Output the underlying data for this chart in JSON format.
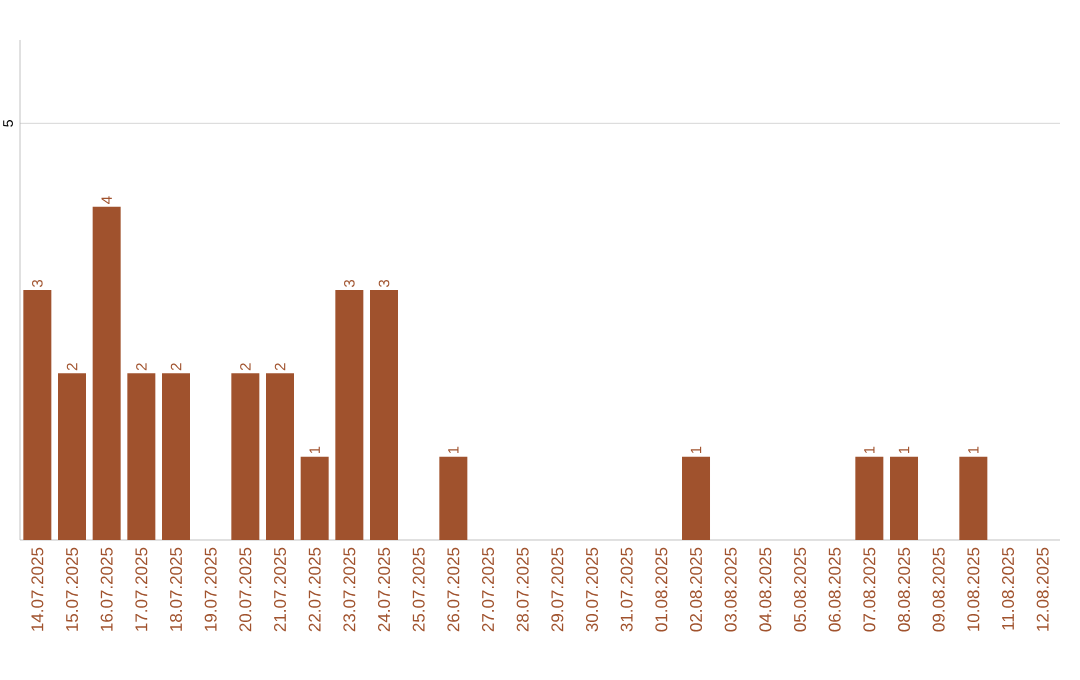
{
  "chart_data": {
    "type": "bar",
    "categories": [
      "14.07.2025",
      "15.07.2025",
      "16.07.2025",
      "17.07.2025",
      "18.07.2025",
      "19.07.2025",
      "20.07.2025",
      "21.07.2025",
      "22.07.2025",
      "23.07.2025",
      "24.07.2025",
      "25.07.2025",
      "26.07.2025",
      "27.07.2025",
      "28.07.2025",
      "29.07.2025",
      "30.07.2025",
      "31.07.2025",
      "01.08.2025",
      "02.08.2025",
      "03.08.2025",
      "04.08.2025",
      "05.08.2025",
      "06.08.2025",
      "07.08.2025",
      "08.08.2025",
      "09.08.2025",
      "10.08.2025",
      "11.08.2025",
      "12.08.2025"
    ],
    "values": [
      3,
      2,
      4,
      2,
      2,
      0,
      2,
      2,
      1,
      3,
      3,
      0,
      1,
      0,
      0,
      0,
      0,
      0,
      0,
      1,
      0,
      0,
      0,
      0,
      1,
      1,
      0,
      1,
      0,
      0
    ],
    "value_labels": [
      "3",
      "2",
      "4",
      "2",
      "2",
      null,
      "2",
      "2",
      "1",
      "3",
      "3",
      null,
      "1",
      null,
      null,
      null,
      null,
      null,
      null,
      "1",
      null,
      null,
      null,
      null,
      "1",
      "1",
      null,
      "1",
      null,
      null
    ],
    "color": "#a0522d",
    "ylim": [
      0,
      6
    ],
    "yticks": [
      5
    ],
    "grid": "y"
  }
}
